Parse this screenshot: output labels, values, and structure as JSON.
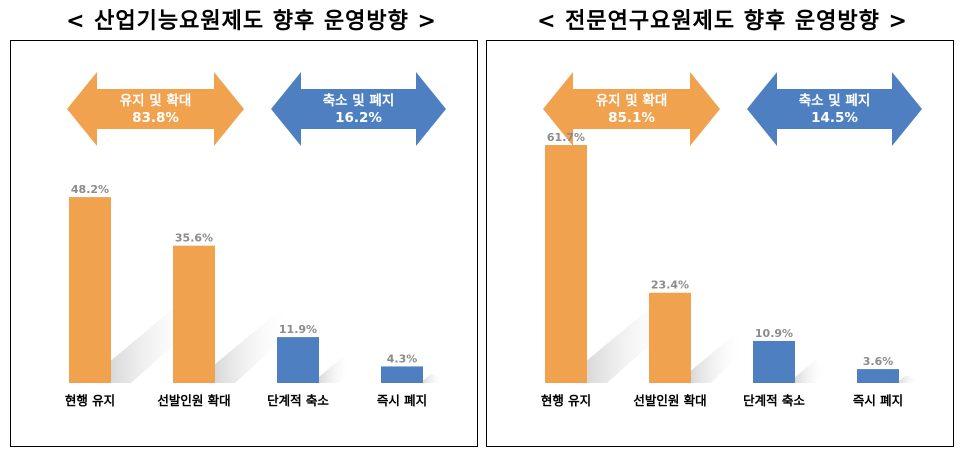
{
  "colors": {
    "orange": "#f0a24f",
    "blue": "#4e7fc1",
    "value_label": "#8c8c8c"
  },
  "chart_data": [
    {
      "type": "bar",
      "title": "< 산업기능요원제도 향후 운영방향 >",
      "ylim": [
        0,
        70
      ],
      "categories": [
        "현행 유지",
        "선발인원 확대",
        "단계적 축소",
        "즉시 폐지"
      ],
      "values": [
        48.2,
        35.6,
        11.9,
        4.3
      ],
      "value_labels": [
        "48.2%",
        "35.6%",
        "11.9%",
        "4.3%"
      ],
      "bar_colors": [
        "orange",
        "orange",
        "blue",
        "blue"
      ],
      "groups": [
        {
          "label": "유지 및 확대",
          "value": "83.8%",
          "color": "orange"
        },
        {
          "label": "축소 및 폐지",
          "value": "16.2%",
          "color": "blue"
        }
      ]
    },
    {
      "type": "bar",
      "title": "< 전문연구요원제도 향후 운영방향 >",
      "ylim": [
        0,
        70
      ],
      "categories": [
        "현행 유지",
        "선발인원 확대",
        "단계적 축소",
        "즉시 폐지"
      ],
      "values": [
        61.7,
        23.4,
        10.9,
        3.6
      ],
      "value_labels": [
        "61.7%",
        "23.4%",
        "10.9%",
        "3.6%"
      ],
      "bar_colors": [
        "orange",
        "orange",
        "blue",
        "blue"
      ],
      "groups": [
        {
          "label": "유지 및 확대",
          "value": "85.1%",
          "color": "orange"
        },
        {
          "label": "축소 및 폐지",
          "value": "14.5%",
          "color": "blue"
        }
      ]
    }
  ]
}
